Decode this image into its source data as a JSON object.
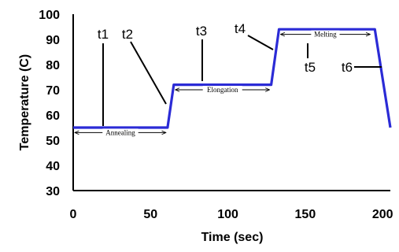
{
  "chart_data": {
    "type": "line",
    "xlabel": "Time (sec)",
    "ylabel": "Temperature (C)",
    "xlim": [
      0,
      205
    ],
    "ylim": [
      30,
      100
    ],
    "x_ticks": [
      "0",
      "50",
      "100",
      "150",
      "200"
    ],
    "y_ticks": [
      "30",
      "40",
      "50",
      "60",
      "70",
      "80",
      "90",
      "100"
    ],
    "grid": false,
    "series": [
      {
        "color": "#2b2bd6",
        "x": [
          0,
          61,
          65,
          128,
          133,
          195,
          205
        ],
        "y": [
          55,
          55,
          72,
          72,
          94,
          94,
          55
        ]
      }
    ],
    "time_markers": [
      {
        "label": "t1"
      },
      {
        "label": "t2"
      },
      {
        "label": "t3"
      },
      {
        "label": "t4"
      },
      {
        "label": "t5"
      },
      {
        "label": "t6"
      }
    ],
    "phases": [
      {
        "label": "Annealing",
        "x_start": 0,
        "x_end": 61,
        "y": 53
      },
      {
        "label": "Elongation",
        "x_start": 65,
        "x_end": 128,
        "y": 70
      },
      {
        "label": "Melting",
        "x_start": 133,
        "x_end": 193,
        "y": 92
      }
    ]
  }
}
